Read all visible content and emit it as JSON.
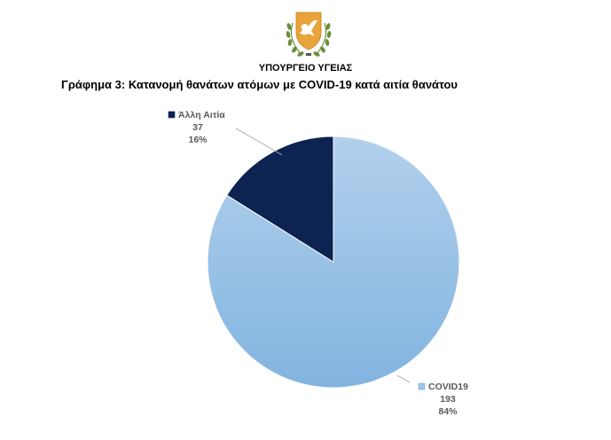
{
  "header": {
    "ministry": "ΥΠΟΥΡΓΕΙΟ ΥΓΕΙΑΣ",
    "emblem_icon": "cyprus-coat-of-arms-icon"
  },
  "chart_data": {
    "type": "pie",
    "title": "Γράφημα 3: Κατανομή θανάτων ατόμων με COVID-19 κατά αιτία θανάτου",
    "slices": [
      {
        "label": "Άλλη Αιτία",
        "value": 37,
        "percent": "16%",
        "color": "#0d2352"
      },
      {
        "label": "COVID19",
        "value": 193,
        "percent": "84%",
        "color": "#9ec4e6"
      }
    ],
    "legend": "data-labels-outside"
  }
}
